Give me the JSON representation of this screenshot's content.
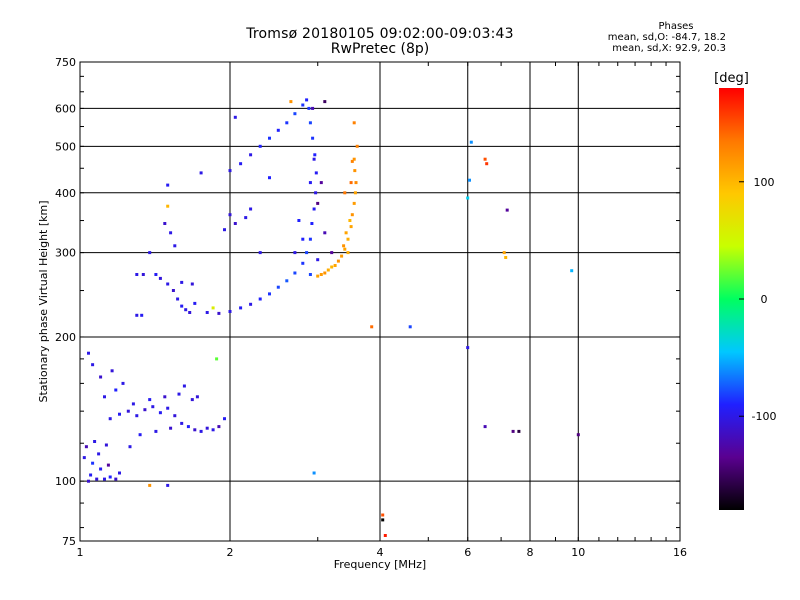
{
  "header": {
    "title": "Tromsø 20180105 09:02:00-09:03:43",
    "subtitle": "RwPretec (8p)"
  },
  "phase_info": {
    "title": "Phases",
    "line1": "mean, sd,O: -84.7, 18.2",
    "line2": "mean, sd,X:  92.9, 20.3"
  },
  "colorbar": {
    "label": "[deg]",
    "range": [
      -180,
      180
    ],
    "ticks": [
      100,
      0,
      -100
    ],
    "colormap": [
      "#000000",
      "#5a0090",
      "#2020ff",
      "#00c8ff",
      "#00ff60",
      "#c8ff00",
      "#ffc800",
      "#ff7800",
      "#ff0000"
    ]
  },
  "chart_data": {
    "type": "scatter",
    "xlabel": "Frequency [MHz]",
    "ylabel": "Stationary phase Virtual Height [km]",
    "xscale": "log",
    "yscale": "log",
    "xlim": [
      1,
      16
    ],
    "ylim": [
      75,
      750
    ],
    "xticks": [
      1,
      2,
      4,
      6,
      8,
      10,
      16
    ],
    "yticks": [
      75,
      100,
      200,
      300,
      400,
      500,
      600,
      750
    ],
    "grid": true,
    "series": [
      {
        "points": [
          [
            1.02,
            112,
            -100
          ],
          [
            1.05,
            103,
            -95
          ],
          [
            1.08,
            101,
            -105
          ],
          [
            1.12,
            101,
            -100
          ],
          [
            1.15,
            102,
            -90
          ],
          [
            1.18,
            101,
            -110
          ],
          [
            1.06,
            109,
            -85
          ],
          [
            1.09,
            114,
            -100
          ],
          [
            1.03,
            118,
            -120
          ],
          [
            1.1,
            106,
            -95
          ],
          [
            1.07,
            121,
            -100
          ],
          [
            1.14,
            108,
            -130
          ],
          [
            1.2,
            104,
            -100
          ],
          [
            1.04,
            100,
            -110
          ],
          [
            1.13,
            119,
            -105
          ],
          [
            1.15,
            135,
            -100
          ],
          [
            1.2,
            138,
            -95
          ],
          [
            1.25,
            140,
            -105
          ],
          [
            1.3,
            137,
            -100
          ],
          [
            1.35,
            141,
            -110
          ],
          [
            1.4,
            143,
            -100
          ],
          [
            1.45,
            139,
            -95
          ],
          [
            1.5,
            142,
            -100
          ],
          [
            1.55,
            137,
            -105
          ],
          [
            1.6,
            132,
            -100
          ],
          [
            1.65,
            130,
            -90
          ],
          [
            1.7,
            128,
            -110
          ],
          [
            1.75,
            127,
            -100
          ],
          [
            1.8,
            129,
            -105
          ],
          [
            1.85,
            128,
            -100
          ],
          [
            1.9,
            130,
            -120
          ],
          [
            1.28,
            145,
            -100
          ],
          [
            1.38,
            148,
            -95
          ],
          [
            1.48,
            150,
            -110
          ],
          [
            1.58,
            152,
            -100
          ],
          [
            1.68,
            148,
            -105
          ],
          [
            1.12,
            150,
            -100
          ],
          [
            1.18,
            155,
            -90
          ],
          [
            1.22,
            160,
            -100
          ],
          [
            1.1,
            165,
            -110
          ],
          [
            1.06,
            175,
            -100
          ],
          [
            1.16,
            170,
            -105
          ],
          [
            1.26,
            118,
            -100
          ],
          [
            1.32,
            125,
            -95
          ],
          [
            1.42,
            127,
            -100
          ],
          [
            1.52,
            129,
            -110
          ],
          [
            1.62,
            158,
            -100
          ],
          [
            1.72,
            150,
            -105
          ],
          [
            1.04,
            185,
            -100
          ],
          [
            1.95,
            135,
            -95
          ],
          [
            1.3,
            270,
            -100
          ],
          [
            1.42,
            270,
            -95
          ],
          [
            1.45,
            265,
            -105
          ],
          [
            1.5,
            258,
            -100
          ],
          [
            1.54,
            250,
            -110
          ],
          [
            1.57,
            240,
            -100
          ],
          [
            1.6,
            232,
            -95
          ],
          [
            1.63,
            228,
            -100
          ],
          [
            1.66,
            225,
            -105
          ],
          [
            1.38,
            300,
            -100
          ],
          [
            1.48,
            345,
            -110
          ],
          [
            1.52,
            330,
            -100
          ],
          [
            1.5,
            415,
            -95
          ],
          [
            1.55,
            310,
            -100
          ],
          [
            1.34,
            270,
            -105
          ],
          [
            1.6,
            260,
            -100
          ],
          [
            1.7,
            235,
            -95
          ],
          [
            1.68,
            258,
            -105
          ],
          [
            1.3,
            222,
            -100
          ],
          [
            1.33,
            222,
            -95
          ],
          [
            1.8,
            225,
            -100
          ],
          [
            1.9,
            224,
            -110
          ],
          [
            2.0,
            226,
            -100
          ],
          [
            2.1,
            230,
            -95
          ],
          [
            2.2,
            234,
            -100
          ],
          [
            2.3,
            240,
            -90
          ],
          [
            2.4,
            246,
            -85
          ],
          [
            2.5,
            254,
            -80
          ],
          [
            2.6,
            262,
            -75
          ],
          [
            2.7,
            272,
            -80
          ],
          [
            2.8,
            285,
            -85
          ],
          [
            2.85,
            300,
            -80
          ],
          [
            2.9,
            320,
            -85
          ],
          [
            2.92,
            345,
            -90
          ],
          [
            2.95,
            370,
            -95
          ],
          [
            2.97,
            400,
            -100
          ],
          [
            2.98,
            440,
            -95
          ],
          [
            2.96,
            480,
            -90
          ],
          [
            2.93,
            520,
            -85
          ],
          [
            2.9,
            560,
            -80
          ],
          [
            2.88,
            600,
            -85
          ],
          [
            2.85,
            625,
            -90
          ],
          [
            2.0,
            445,
            -100
          ],
          [
            2.1,
            460,
            -95
          ],
          [
            2.2,
            480,
            -100
          ],
          [
            2.3,
            500,
            -90
          ],
          [
            2.4,
            520,
            -85
          ],
          [
            2.5,
            540,
            -90
          ],
          [
            2.6,
            560,
            -85
          ],
          [
            2.7,
            585,
            -80
          ],
          [
            2.8,
            610,
            -85
          ],
          [
            2.15,
            355,
            -100
          ],
          [
            2.0,
            360,
            -105
          ],
          [
            1.95,
            335,
            -100
          ],
          [
            2.05,
            345,
            -110
          ],
          [
            1.75,
            440,
            -100
          ],
          [
            2.05,
            575,
            -100
          ],
          [
            2.75,
            350,
            -90
          ],
          [
            2.9,
            420,
            -95
          ],
          [
            2.95,
            470,
            -100
          ],
          [
            2.93,
            600,
            -120
          ],
          [
            3.1,
            620,
            -150
          ],
          [
            3.0,
            380,
            -140
          ],
          [
            3.05,
            420,
            -130
          ],
          [
            3.1,
            330,
            -120
          ],
          [
            3.2,
            300,
            -130
          ],
          [
            3.0,
            290,
            -100
          ],
          [
            2.8,
            320,
            -90
          ],
          [
            2.9,
            270,
            -80
          ],
          [
            2.7,
            300,
            -100
          ],
          [
            3.0,
            268,
            110
          ],
          [
            3.05,
            270,
            115
          ],
          [
            3.1,
            272,
            120
          ],
          [
            3.15,
            276,
            105
          ],
          [
            3.2,
            280,
            100
          ],
          [
            3.25,
            282,
            110
          ],
          [
            3.3,
            288,
            120
          ],
          [
            3.35,
            295,
            115
          ],
          [
            3.4,
            305,
            110
          ],
          [
            3.45,
            320,
            105
          ],
          [
            3.5,
            340,
            110
          ],
          [
            3.52,
            360,
            120
          ],
          [
            3.55,
            380,
            115
          ],
          [
            3.57,
            400,
            110
          ],
          [
            3.58,
            420,
            125
          ],
          [
            3.56,
            445,
            120
          ],
          [
            3.52,
            465,
            130
          ],
          [
            3.48,
            350,
            100
          ],
          [
            3.42,
            330,
            110
          ],
          [
            3.38,
            310,
            120
          ],
          [
            3.6,
            500,
            130
          ],
          [
            3.5,
            420,
            140
          ],
          [
            3.4,
            400,
            135
          ],
          [
            3.55,
            470,
            120
          ],
          [
            3.45,
            300,
            105
          ],
          [
            3.55,
            560,
            130
          ],
          [
            2.65,
            620,
            120
          ],
          [
            3.85,
            210,
            140
          ],
          [
            4.6,
            210,
            -80
          ],
          [
            2.95,
            104,
            -60
          ],
          [
            4.05,
            85,
            150
          ],
          [
            4.05,
            83,
            -180
          ],
          [
            4.1,
            77,
            170
          ],
          [
            1.38,
            98,
            120
          ],
          [
            1.5,
            98,
            -100
          ],
          [
            1.88,
            180,
            20
          ],
          [
            1.85,
            230,
            60
          ],
          [
            1.5,
            375,
            100
          ],
          [
            6.1,
            510,
            -60
          ],
          [
            6.05,
            425,
            -60
          ],
          [
            6.5,
            470,
            150
          ],
          [
            6.55,
            460,
            160
          ],
          [
            7.1,
            300,
            110
          ],
          [
            7.15,
            293,
            100
          ],
          [
            6.5,
            130,
            -120
          ],
          [
            7.4,
            127,
            -140
          ],
          [
            7.6,
            127,
            -160
          ],
          [
            7.2,
            368,
            -130
          ],
          [
            9.7,
            275,
            -50
          ],
          [
            10.0,
            125,
            -140
          ],
          [
            6.0,
            390,
            -40
          ],
          [
            6.0,
            190,
            -100
          ],
          [
            2.4,
            430,
            -90
          ],
          [
            2.2,
            370,
            -100
          ],
          [
            2.3,
            300,
            -100
          ]
        ]
      }
    ]
  }
}
